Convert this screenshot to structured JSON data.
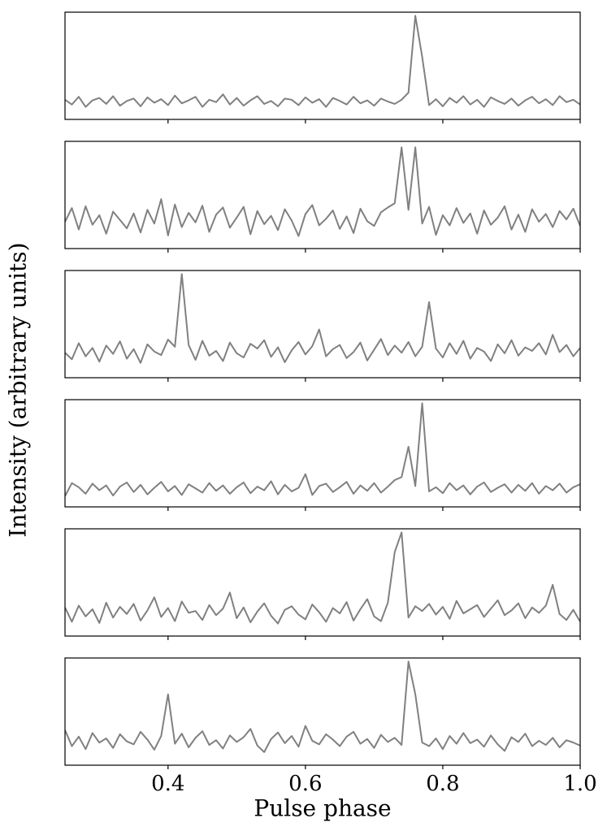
{
  "chart_data": {
    "type": "line",
    "xlabel": "Pulse phase",
    "ylabel": "Intensity (arbitrary units)",
    "xlim": [
      0.25,
      1.0
    ],
    "xticks": [
      0.4,
      0.6,
      0.8,
      {
        "value": 1.0,
        "label": "1.0"
      }
    ],
    "x": [
      0.25,
      0.26,
      0.27,
      0.28,
      0.29,
      0.3,
      0.31,
      0.32,
      0.33,
      0.34,
      0.35,
      0.36,
      0.37,
      0.38,
      0.39,
      0.4,
      0.41,
      0.42,
      0.43,
      0.44,
      0.45,
      0.46,
      0.47,
      0.48,
      0.49,
      0.5,
      0.51,
      0.52,
      0.53,
      0.54,
      0.55,
      0.56,
      0.57,
      0.58,
      0.59,
      0.6,
      0.61,
      0.62,
      0.63,
      0.64,
      0.65,
      0.66,
      0.67,
      0.68,
      0.69,
      0.7,
      0.71,
      0.72,
      0.73,
      0.74,
      0.75,
      0.76,
      0.77,
      0.78,
      0.79,
      0.8,
      0.81,
      0.82,
      0.83,
      0.84,
      0.85,
      0.86,
      0.87,
      0.88,
      0.89,
      0.9,
      0.91,
      0.92,
      0.93,
      0.94,
      0.95,
      0.96,
      0.97,
      0.98,
      0.99,
      1.0
    ],
    "series": [
      {
        "color": "#808080",
        "ylim": [
          -3,
          15
        ],
        "values": [
          0.3,
          -0.5,
          0.8,
          -0.9,
          0.2,
          0.6,
          -0.4,
          0.9,
          -0.7,
          0.1,
          0.5,
          -0.8,
          0.7,
          -0.2,
          0.4,
          -0.6,
          1.0,
          -0.3,
          0.2,
          0.8,
          -0.9,
          0.3,
          -0.1,
          1.2,
          -0.5,
          0.6,
          -0.7,
          0.2,
          0.9,
          -0.4,
          0.1,
          -0.8,
          0.5,
          0.3,
          -0.6,
          0.7,
          -0.2,
          0.4,
          -0.9,
          0.6,
          0.1,
          -0.5,
          0.8,
          -0.3,
          0.2,
          -0.7,
          0.5,
          0.0,
          -0.4,
          0.3,
          1.5,
          14.4,
          7.5,
          -0.6,
          0.4,
          -0.8,
          0.6,
          -0.2,
          0.9,
          -0.5,
          0.3,
          -0.9,
          0.7,
          0.1,
          -0.4,
          0.5,
          -0.7,
          0.2,
          0.8,
          -0.3,
          0.4,
          -0.6,
          0.9,
          -0.1,
          0.3,
          -0.5
        ]
      },
      {
        "color": "#808080",
        "ylim": [
          -3,
          15
        ],
        "values": [
          1.5,
          3.8,
          0.2,
          4.1,
          1.0,
          2.6,
          -0.5,
          3.2,
          1.8,
          0.4,
          2.9,
          -0.3,
          3.5,
          1.2,
          5.3,
          -0.8,
          4.4,
          0.6,
          3.0,
          1.4,
          4.2,
          -0.2,
          2.7,
          3.9,
          0.5,
          2.2,
          4.0,
          -0.6,
          3.3,
          1.1,
          2.5,
          0.1,
          3.6,
          1.7,
          -0.9,
          2.8,
          4.3,
          0.9,
          2.0,
          3.4,
          0.3,
          2.4,
          -0.4,
          3.7,
          1.6,
          0.8,
          3.1,
          3.9,
          4.6,
          14.0,
          3.5,
          14.0,
          1.2,
          4.0,
          -0.7,
          2.6,
          0.9,
          3.8,
          1.3,
          2.9,
          -0.5,
          3.4,
          1.0,
          2.2,
          4.1,
          0.2,
          2.7,
          -0.2,
          3.6,
          1.5,
          2.8,
          0.6,
          3.3,
          1.9,
          3.7,
          0.8
        ]
      },
      {
        "color": "#808080",
        "ylim": [
          -3,
          15
        ],
        "values": [
          1.2,
          0.1,
          2.8,
          0.6,
          2.0,
          -0.3,
          2.4,
          1.0,
          3.1,
          0.2,
          1.8,
          -0.5,
          2.6,
          1.4,
          0.8,
          3.4,
          2.2,
          14.4,
          2.5,
          0.0,
          3.2,
          0.7,
          1.5,
          -0.2,
          2.9,
          1.1,
          0.4,
          2.7,
          1.9,
          3.3,
          0.5,
          2.1,
          -0.4,
          1.6,
          3.0,
          0.9,
          2.3,
          5.1,
          0.6,
          1.8,
          2.5,
          0.3,
          1.3,
          2.9,
          -0.1,
          1.7,
          3.5,
          0.8,
          2.4,
          1.2,
          3.0,
          0.6,
          2.2,
          9.7,
          1.9,
          0.4,
          2.8,
          1.0,
          3.2,
          0.2,
          2.0,
          1.4,
          -0.2,
          2.6,
          1.1,
          3.3,
          0.7,
          2.1,
          1.5,
          2.8,
          0.9,
          4.2,
          1.3,
          2.5,
          0.6,
          2.0
        ]
      },
      {
        "color": "#808080",
        "ylim": [
          -3,
          15
        ],
        "values": [
          -1.2,
          1.0,
          0.3,
          -0.8,
          0.9,
          -0.2,
          0.6,
          -1.1,
          0.4,
          1.1,
          -0.5,
          0.7,
          -0.9,
          0.2,
          1.2,
          -0.4,
          0.5,
          -1.0,
          0.8,
          0.1,
          -0.6,
          1.0,
          -0.3,
          0.6,
          -0.8,
          0.3,
          1.1,
          -0.7,
          0.4,
          -0.2,
          1.3,
          -0.9,
          0.7,
          -0.4,
          0.2,
          2.5,
          -1.0,
          0.5,
          0.9,
          -0.5,
          0.3,
          1.2,
          -0.8,
          0.6,
          -0.3,
          1.0,
          -0.6,
          0.4,
          1.5,
          2.0,
          7.1,
          0.5,
          14.4,
          -0.4,
          0.3,
          -0.7,
          1.0,
          -0.2,
          0.6,
          -0.9,
          0.4,
          1.1,
          -0.5,
          0.2,
          0.8,
          -0.6,
          0.7,
          -0.3,
          1.0,
          -0.8,
          0.5,
          -0.2,
          0.9,
          -0.6,
          0.3,
          0.8
        ]
      },
      {
        "color": "#808080",
        "ylim": [
          -3,
          15
        ],
        "values": [
          1.8,
          -0.6,
          2.1,
          0.3,
          1.5,
          -0.8,
          2.6,
          0.1,
          1.9,
          0.7,
          2.4,
          -0.4,
          1.3,
          3.5,
          0.2,
          1.7,
          -0.5,
          2.8,
          0.9,
          1.2,
          -0.3,
          2.2,
          0.5,
          1.6,
          4.3,
          0.0,
          1.8,
          -0.7,
          1.1,
          2.5,
          0.4,
          -0.9,
          1.4,
          2.0,
          0.6,
          -0.2,
          2.3,
          1.0,
          -0.6,
          1.7,
          0.8,
          2.7,
          -0.4,
          1.5,
          3.2,
          0.3,
          -0.5,
          2.6,
          11.1,
          14.4,
          0.1,
          2.0,
          1.2,
          2.4,
          0.6,
          1.9,
          -0.1,
          2.9,
          0.8,
          1.5,
          2.2,
          0.2,
          1.6,
          3.0,
          0.5,
          1.3,
          2.5,
          0.0,
          1.8,
          0.9,
          2.1,
          5.6,
          0.7,
          -0.3,
          1.4,
          -0.6
        ]
      },
      {
        "color": "#808080",
        "ylim": [
          -3,
          15
        ],
        "values": [
          2.9,
          0.2,
          1.8,
          -0.3,
          2.4,
          0.8,
          1.5,
          -0.1,
          2.2,
          1.0,
          0.5,
          2.6,
          1.3,
          -0.4,
          1.9,
          8.9,
          0.6,
          2.3,
          0.0,
          1.6,
          2.7,
          0.4,
          1.2,
          -0.2,
          2.0,
          0.9,
          1.7,
          3.1,
          0.3,
          -0.8,
          1.4,
          2.5,
          0.7,
          1.9,
          0.1,
          3.6,
          1.1,
          0.5,
          2.2,
          1.3,
          0.2,
          1.8,
          2.6,
          0.6,
          1.4,
          -0.1,
          2.1,
          0.9,
          1.6,
          0.4,
          14.4,
          8.9,
          0.8,
          0.2,
          1.5,
          -0.3,
          1.9,
          0.6,
          2.4,
          0.7,
          1.3,
          0.1,
          2.0,
          0.5,
          -0.6,
          1.7,
          0.9,
          2.3,
          0.2,
          1.1,
          0.4,
          1.6,
          0.0,
          1.2,
          0.8,
          0.3
        ]
      }
    ]
  }
}
